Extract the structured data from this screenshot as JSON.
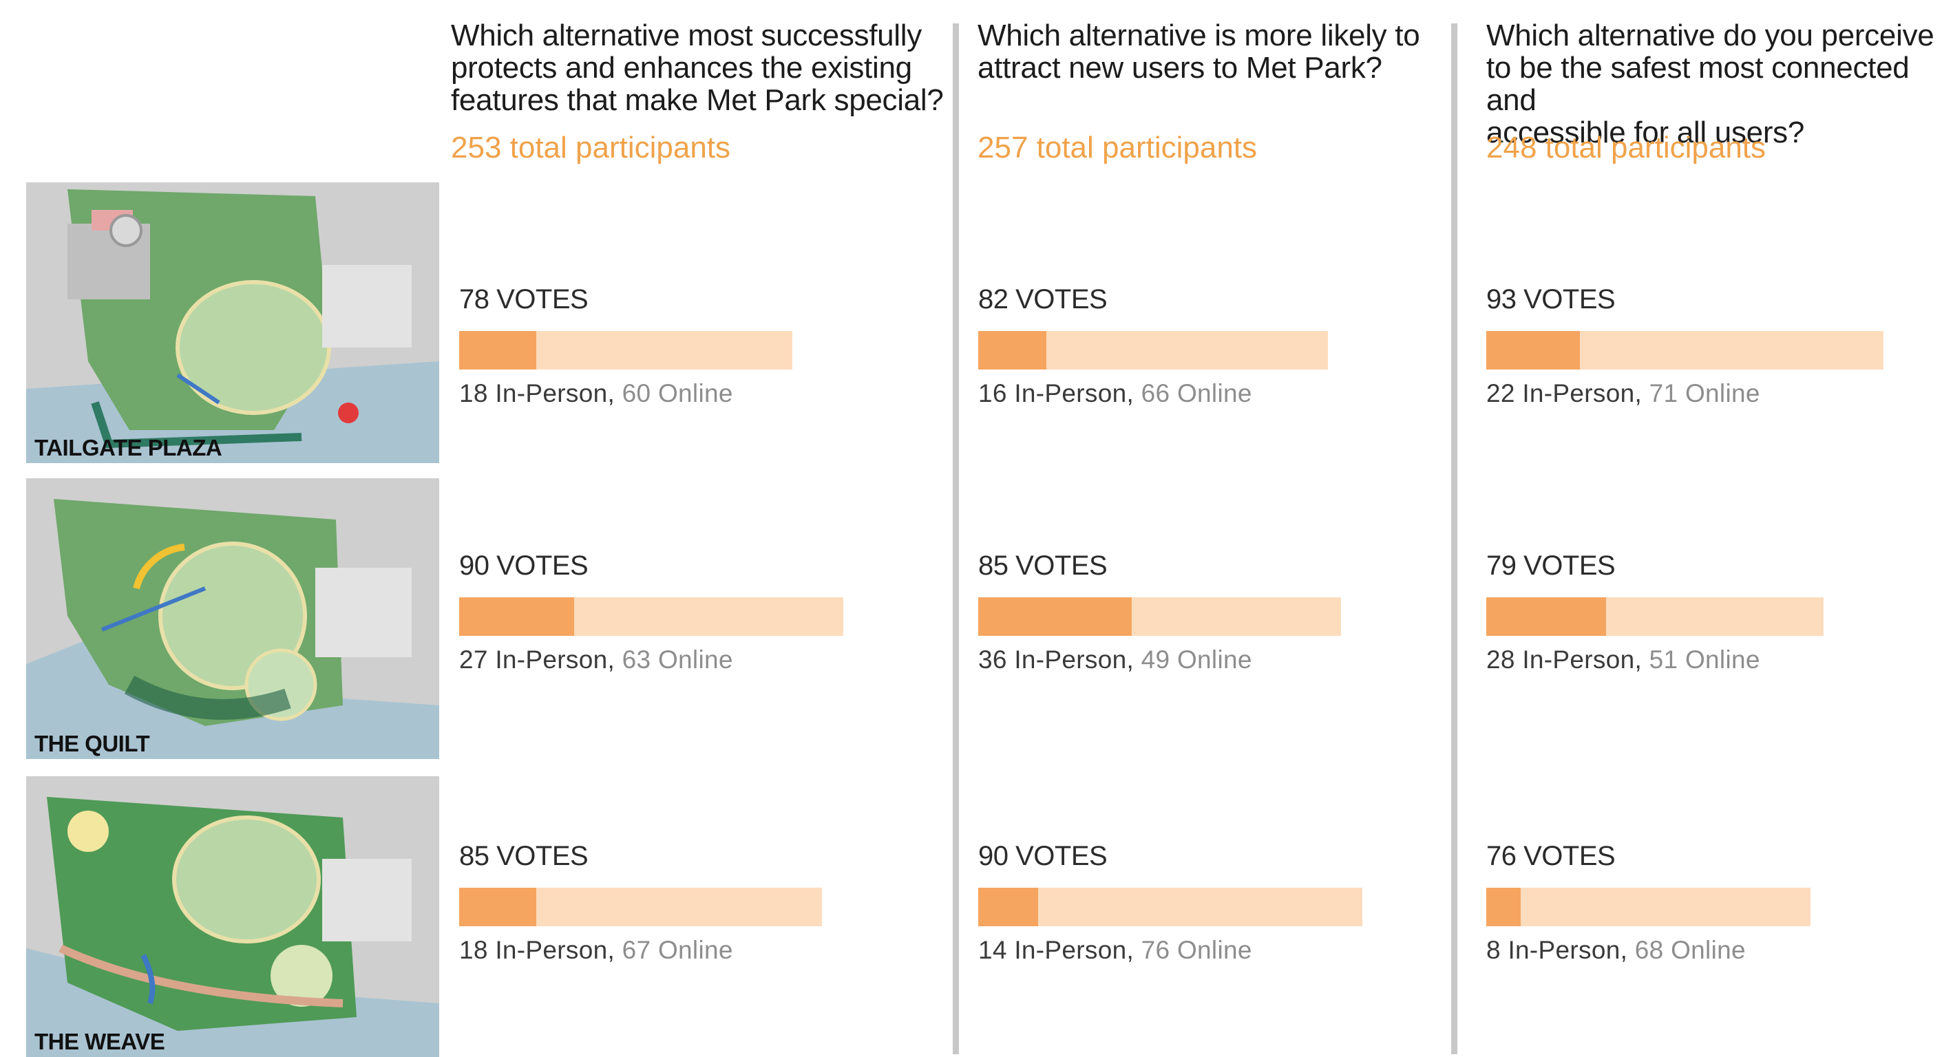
{
  "questions": [
    {
      "text": "Which alternative most successfully\nprotects and enhances the existing\nfeatures that make Met Park special?",
      "participants": "253 total participants"
    },
    {
      "text": "Which alternative is more likely to\nattract new users to Met Park?",
      "participants": "257 total participants"
    },
    {
      "text": "Which alternative do you perceive\nto be the safest most connected and\naccessible for all users?",
      "participants": "248 total participants"
    }
  ],
  "alternatives": [
    {
      "label": "TAILGATE PLAZA"
    },
    {
      "label": "THE QUILT"
    },
    {
      "label": "THE WEAVE"
    }
  ],
  "chart_data": {
    "type": "bar",
    "categories": [
      "TAILGATE PLAZA",
      "THE QUILT",
      "THE WEAVE"
    ],
    "panels": [
      {
        "rows": [
          {
            "votes_label": "78 VOTES",
            "total": 78,
            "in_person": 18,
            "online": 60,
            "in_person_label": "18 In-Person",
            "online_label": "60 Online"
          },
          {
            "votes_label": "90 VOTES",
            "total": 90,
            "in_person": 27,
            "online": 63,
            "in_person_label": "27 In-Person",
            "online_label": "63 Online"
          },
          {
            "votes_label": "85 VOTES",
            "total": 85,
            "in_person": 18,
            "online": 67,
            "in_person_label": "18 In-Person",
            "online_label": "67 Online"
          }
        ]
      },
      {
        "rows": [
          {
            "votes_label": "82 VOTES",
            "total": 82,
            "in_person": 16,
            "online": 66,
            "in_person_label": "16 In-Person",
            "online_label": "66 Online"
          },
          {
            "votes_label": "85 VOTES",
            "total": 85,
            "in_person": 36,
            "online": 49,
            "in_person_label": "36 In-Person",
            "online_label": "49 Online"
          },
          {
            "votes_label": "90 VOTES",
            "total": 90,
            "in_person": 14,
            "online": 76,
            "in_person_label": "14 In-Person",
            "online_label": "76 Online"
          }
        ]
      },
      {
        "rows": [
          {
            "votes_label": "93 VOTES",
            "total": 93,
            "in_person": 22,
            "online": 71,
            "in_person_label": "22 In-Person",
            "online_label": "71 Online"
          },
          {
            "votes_label": "79 VOTES",
            "total": 79,
            "in_person": 28,
            "online": 51,
            "in_person_label": "28 In-Person",
            "online_label": "51 Online"
          },
          {
            "votes_label": "76 VOTES",
            "total": 76,
            "in_person": 8,
            "online": 68,
            "in_person_label": "8 In-Person",
            "online_label": "68 Online"
          }
        ]
      }
    ],
    "separator": ", ",
    "colors": {
      "in_person": "#f5a560",
      "online": "#fddcbd",
      "participants_text": "#f0a24a",
      "online_text": "#8d8d8d",
      "divider": "#c8c8c8"
    }
  }
}
